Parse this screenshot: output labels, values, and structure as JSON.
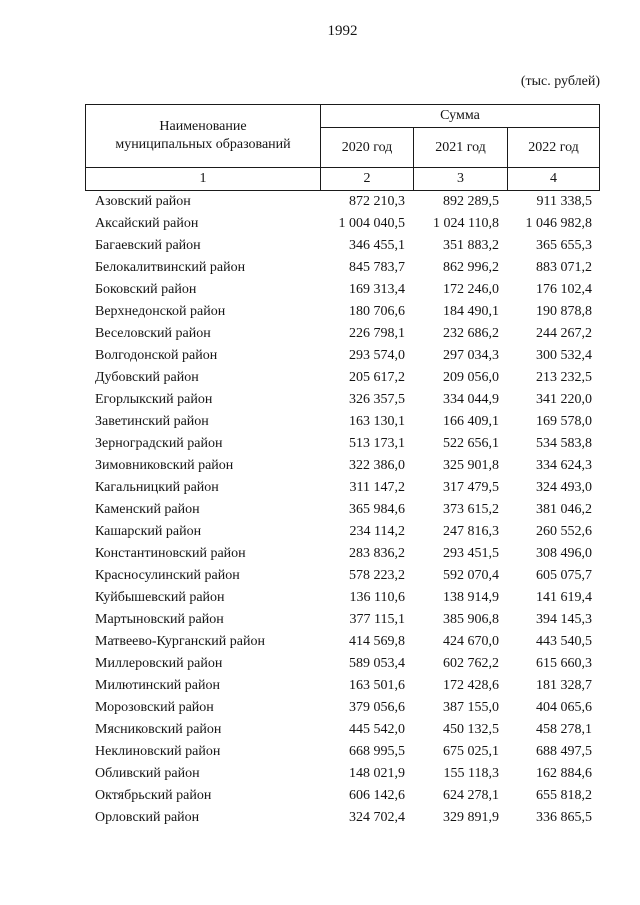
{
  "page": {
    "number": "1992",
    "units_note": "(тыс. рублей)"
  },
  "table": {
    "name_header": {
      "line1": "Наименование",
      "line2": "муниципальных образований"
    },
    "sum_header": "Сумма",
    "year_headers": [
      "2020 год",
      "2021 год",
      "2022 год"
    ],
    "column_numbers": [
      "1",
      "2",
      "3",
      "4"
    ],
    "rows": [
      {
        "name": "Азовский район",
        "values": [
          "872 210,3",
          "892 289,5",
          "911 338,5"
        ]
      },
      {
        "name": "Аксайский район",
        "values": [
          "1 004 040,5",
          "1 024 110,8",
          "1 046 982,8"
        ]
      },
      {
        "name": "Багаевский район",
        "values": [
          "346 455,1",
          "351 883,2",
          "365 655,3"
        ]
      },
      {
        "name": "Белокалитвинский район",
        "values": [
          "845 783,7",
          "862 996,2",
          "883 071,2"
        ]
      },
      {
        "name": "Боковский район",
        "values": [
          "169 313,4",
          "172 246,0",
          "176 102,4"
        ]
      },
      {
        "name": "Верхнедонской район",
        "values": [
          "180 706,6",
          "184 490,1",
          "190 878,8"
        ]
      },
      {
        "name": "Веселовский район",
        "values": [
          "226 798,1",
          "232 686,2",
          "244 267,2"
        ]
      },
      {
        "name": "Волгодонской район",
        "values": [
          "293 574,0",
          "297 034,3",
          "300 532,4"
        ]
      },
      {
        "name": "Дубовский район",
        "values": [
          "205 617,2",
          "209 056,0",
          "213 232,5"
        ]
      },
      {
        "name": "Егорлыкский район",
        "values": [
          "326 357,5",
          "334 044,9",
          "341 220,0"
        ]
      },
      {
        "name": "Заветинский район",
        "values": [
          "163 130,1",
          "166 409,1",
          "169 578,0"
        ]
      },
      {
        "name": "Зерноградский район",
        "values": [
          "513 173,1",
          "522 656,1",
          "534 583,8"
        ]
      },
      {
        "name": "Зимовниковский район",
        "values": [
          "322 386,0",
          "325 901,8",
          "334 624,3"
        ]
      },
      {
        "name": "Кагальницкий район",
        "values": [
          "311 147,2",
          "317 479,5",
          "324 493,0"
        ]
      },
      {
        "name": "Каменский район",
        "values": [
          "365 984,6",
          "373 615,2",
          "381 046,2"
        ]
      },
      {
        "name": "Кашарский район",
        "values": [
          "234 114,2",
          "247 816,3",
          "260 552,6"
        ]
      },
      {
        "name": "Константиновский район",
        "values": [
          "283 836,2",
          "293 451,5",
          "308 496,0"
        ]
      },
      {
        "name": "Красносулинский район",
        "values": [
          "578 223,2",
          "592 070,4",
          "605 075,7"
        ]
      },
      {
        "name": "Куйбышевский район",
        "values": [
          "136 110,6",
          "138 914,9",
          "141 619,4"
        ]
      },
      {
        "name": "Мартыновский район",
        "values": [
          "377 115,1",
          "385 906,8",
          "394 145,3"
        ]
      },
      {
        "name": "Матвеево-Курганский район",
        "values": [
          "414 569,8",
          "424 670,0",
          "443 540,5"
        ]
      },
      {
        "name": "Миллеровский район",
        "values": [
          "589 053,4",
          "602 762,2",
          "615 660,3"
        ]
      },
      {
        "name": "Милютинский район",
        "values": [
          "163 501,6",
          "172 428,6",
          "181 328,7"
        ]
      },
      {
        "name": "Морозовский район",
        "values": [
          "379 056,6",
          "387 155,0",
          "404 065,6"
        ]
      },
      {
        "name": "Мясниковский район",
        "values": [
          "445 542,0",
          "450 132,5",
          "458 278,1"
        ]
      },
      {
        "name": "Неклиновский район",
        "values": [
          "668 995,5",
          "675 025,1",
          "688 497,5"
        ]
      },
      {
        "name": "Обливский район",
        "values": [
          "148 021,9",
          "155 118,3",
          "162 884,6"
        ]
      },
      {
        "name": "Октябрьский район",
        "values": [
          "606 142,6",
          "624 278,1",
          "655 818,2"
        ]
      },
      {
        "name": "Орловский район",
        "values": [
          "324 702,4",
          "329 891,9",
          "336 865,5"
        ]
      }
    ]
  }
}
